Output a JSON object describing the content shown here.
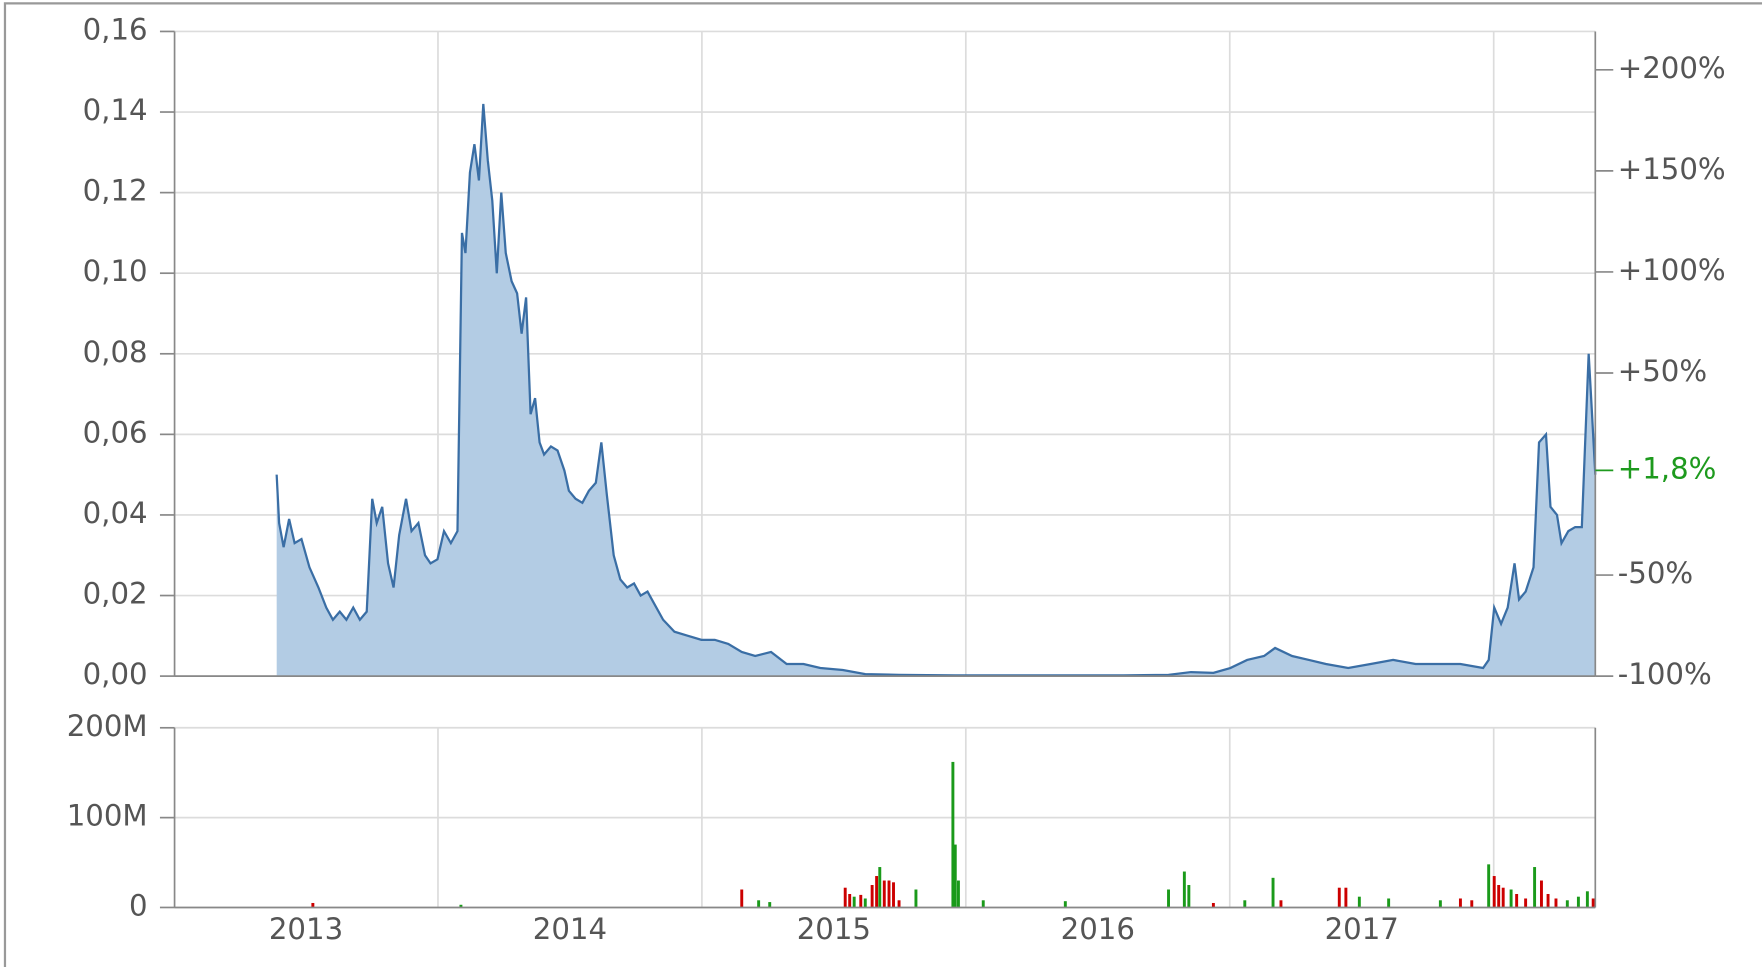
{
  "chart_data": [
    {
      "type": "area",
      "color": "#3a6ea5",
      "fill": "#b3cce4",
      "grid": true,
      "x": [
        2012.889,
        2012.898,
        2012.915,
        2012.936,
        2012.957,
        2012.983,
        2013.013,
        2013.047,
        2013.077,
        2013.102,
        2013.128,
        2013.153,
        2013.179,
        2013.204,
        2013.23,
        2013.251,
        2013.268,
        2013.289,
        2013.311,
        2013.332,
        2013.353,
        2013.379,
        2013.4,
        2013.426,
        2013.451,
        2013.472,
        2013.498,
        2013.523,
        2013.549,
        2013.574,
        2013.591,
        2013.604,
        2013.621,
        2013.638,
        2013.655,
        2013.672,
        2013.689,
        2013.706,
        2013.723,
        2013.74,
        2013.757,
        2013.779,
        2013.8,
        2013.817,
        2013.834,
        2013.851,
        2013.868,
        2013.885,
        2013.902,
        2013.928,
        2013.953,
        2013.979,
        2013.996,
        2014.021,
        2014.047,
        2014.072,
        2014.098,
        2014.119,
        2014.14,
        2014.166,
        2014.191,
        2014.217,
        2014.243,
        2014.268,
        2014.294,
        2014.319,
        2014.353,
        2014.396,
        2014.447,
        2014.498,
        2014.549,
        2014.6,
        2014.651,
        2014.702,
        2014.762,
        2014.821,
        2014.885,
        2014.949,
        2015.034,
        2015.119,
        2015.247,
        2015.46,
        2015.672,
        2015.885,
        2016.098,
        2016.268,
        2016.353,
        2016.438,
        2016.502,
        2016.566,
        2016.63,
        2016.672,
        2016.736,
        2016.8,
        2016.864,
        2016.949,
        2017.034,
        2017.119,
        2017.204,
        2017.289,
        2017.374,
        2017.46,
        2017.481,
        2017.502,
        2017.528,
        2017.553,
        2017.579,
        2017.596,
        2017.621,
        2017.651,
        2017.672,
        2017.698,
        2017.715,
        2017.74,
        2017.757,
        2017.783,
        2017.809,
        2017.834,
        2017.86,
        2017.872,
        2017.885
      ],
      "values": [
        0.05,
        0.038,
        0.032,
        0.039,
        0.033,
        0.034,
        0.027,
        0.022,
        0.017,
        0.014,
        0.016,
        0.014,
        0.017,
        0.014,
        0.016,
        0.044,
        0.038,
        0.042,
        0.028,
        0.022,
        0.035,
        0.044,
        0.036,
        0.038,
        0.03,
        0.028,
        0.029,
        0.036,
        0.033,
        0.036,
        0.11,
        0.105,
        0.125,
        0.132,
        0.123,
        0.142,
        0.128,
        0.118,
        0.1,
        0.12,
        0.105,
        0.098,
        0.095,
        0.085,
        0.094,
        0.065,
        0.069,
        0.058,
        0.055,
        0.057,
        0.056,
        0.051,
        0.046,
        0.044,
        0.043,
        0.046,
        0.048,
        0.058,
        0.045,
        0.03,
        0.024,
        0.022,
        0.023,
        0.02,
        0.021,
        0.018,
        0.014,
        0.011,
        0.01,
        0.009,
        0.009,
        0.008,
        0.006,
        0.005,
        0.006,
        0.003,
        0.003,
        0.002,
        0.0015,
        0.0005,
        0.0003,
        0.0002,
        0.0002,
        0.0002,
        0.0002,
        0.0003,
        0.001,
        0.0008,
        0.002,
        0.004,
        0.005,
        0.007,
        0.005,
        0.004,
        0.003,
        0.002,
        0.003,
        0.004,
        0.003,
        0.003,
        0.003,
        0.002,
        0.004,
        0.017,
        0.013,
        0.017,
        0.028,
        0.019,
        0.021,
        0.027,
        0.058,
        0.06,
        0.042,
        0.04,
        0.033,
        0.036,
        0.037,
        0.037,
        0.08,
        0.066,
        0.05
      ],
      "xlim": [
        2012.502,
        2017.885
      ],
      "xgrid": [
        2013.5,
        2014.5,
        2015.5,
        2016.5,
        2017.5
      ],
      "ylim": [
        0,
        0.16
      ],
      "yticks": [
        {
          "value": 0,
          "label": "0,00"
        },
        {
          "value": 0.02,
          "label": "0,02"
        },
        {
          "value": 0.04,
          "label": "0,04"
        },
        {
          "value": 0.06,
          "label": "0,06"
        },
        {
          "value": 0.08,
          "label": "0,08"
        },
        {
          "value": 0.1,
          "label": "0,10"
        },
        {
          "value": 0.12,
          "label": "0,12"
        },
        {
          "value": 0.14,
          "label": "0,14"
        },
        {
          "value": 0.16,
          "label": "0,16"
        }
      ],
      "y2lim": [
        -100,
        219
      ],
      "y2ticks": [
        {
          "value": -100,
          "label": "-100%"
        },
        {
          "value": -50,
          "label": "-50%"
        },
        {
          "value": 50,
          "label": "+50%"
        },
        {
          "value": 100,
          "label": "+100%"
        },
        {
          "value": 150,
          "label": "+150%"
        },
        {
          "value": 200,
          "label": "+200%"
        }
      ],
      "last_change": {
        "value": 1.8,
        "label": "+1,8%",
        "color": "#1e9a1e"
      }
    },
    {
      "type": "bar",
      "grid": true,
      "x": [
        2013.026,
        2013.587,
        2014.651,
        2014.715,
        2014.757,
        2015.043,
        2015.06,
        2015.077,
        2015.102,
        2015.119,
        2015.145,
        2015.162,
        2015.174,
        2015.191,
        2015.209,
        2015.226,
        2015.247,
        2015.311,
        2015.451,
        2015.46,
        2015.472,
        2015.566,
        2015.877,
        2016.268,
        2016.328,
        2016.345,
        2016.438,
        2016.557,
        2016.664,
        2016.694,
        2016.915,
        2016.94,
        2016.991,
        2017.102,
        2017.298,
        2017.374,
        2017.417,
        2017.481,
        2017.502,
        2017.519,
        2017.536,
        2017.566,
        2017.587,
        2017.621,
        2017.655,
        2017.681,
        2017.706,
        2017.736,
        2017.779,
        2017.821,
        2017.855,
        2017.877
      ],
      "values": [
        5000000,
        3000000,
        20000000,
        8000000,
        6000000,
        22000000,
        15000000,
        12000000,
        14000000,
        10000000,
        25000000,
        35000000,
        45000000,
        30000000,
        30000000,
        28000000,
        8000000,
        20000000,
        162000000,
        70000000,
        30000000,
        8000000,
        7000000,
        20000000,
        40000000,
        25000000,
        5000000,
        8000000,
        33000000,
        8000000,
        22000000,
        22000000,
        12000000,
        10000000,
        8000000,
        10000000,
        8000000,
        48000000,
        35000000,
        25000000,
        22000000,
        20000000,
        15000000,
        10000000,
        45000000,
        30000000,
        15000000,
        10000000,
        8000000,
        12000000,
        18000000,
        10000000
      ],
      "colors": [
        "#cc0000",
        "#1a9a1a",
        "#cc0000",
        "#1a9a1a",
        "#1a9a1a",
        "#cc0000",
        "#cc0000",
        "#1a9a1a",
        "#cc0000",
        "#1a9a1a",
        "#cc0000",
        "#cc0000",
        "#1a9a1a",
        "#cc0000",
        "#cc0000",
        "#cc0000",
        "#cc0000",
        "#1a9a1a",
        "#1a9a1a",
        "#1a9a1a",
        "#1a9a1a",
        "#1a9a1a",
        "#1a9a1a",
        "#1a9a1a",
        "#1a9a1a",
        "#1a9a1a",
        "#cc0000",
        "#1a9a1a",
        "#1a9a1a",
        "#cc0000",
        "#cc0000",
        "#cc0000",
        "#1a9a1a",
        "#1a9a1a",
        "#1a9a1a",
        "#cc0000",
        "#cc0000",
        "#1a9a1a",
        "#cc0000",
        "#cc0000",
        "#cc0000",
        "#1a9a1a",
        "#cc0000",
        "#cc0000",
        "#1a9a1a",
        "#cc0000",
        "#cc0000",
        "#cc0000",
        "#1a9a1a",
        "#1a9a1a",
        "#1a9a1a",
        "#cc0000"
      ],
      "xlim": [
        2012.502,
        2017.885
      ],
      "xgrid": [
        2013.5,
        2014.5,
        2015.5,
        2016.5,
        2017.5
      ],
      "xticks": [
        {
          "value": 2013,
          "label": "2013"
        },
        {
          "value": 2014,
          "label": "2014"
        },
        {
          "value": 2015,
          "label": "2015"
        },
        {
          "value": 2016,
          "label": "2016"
        },
        {
          "value": 2017,
          "label": "2017"
        }
      ],
      "ylim": [
        0,
        200000000
      ],
      "yticks": [
        0,
        {
          "value": 100000000,
          "label": "100M"
        },
        {
          "value": 200000000,
          "label": "200M"
        }
      ]
    }
  ]
}
